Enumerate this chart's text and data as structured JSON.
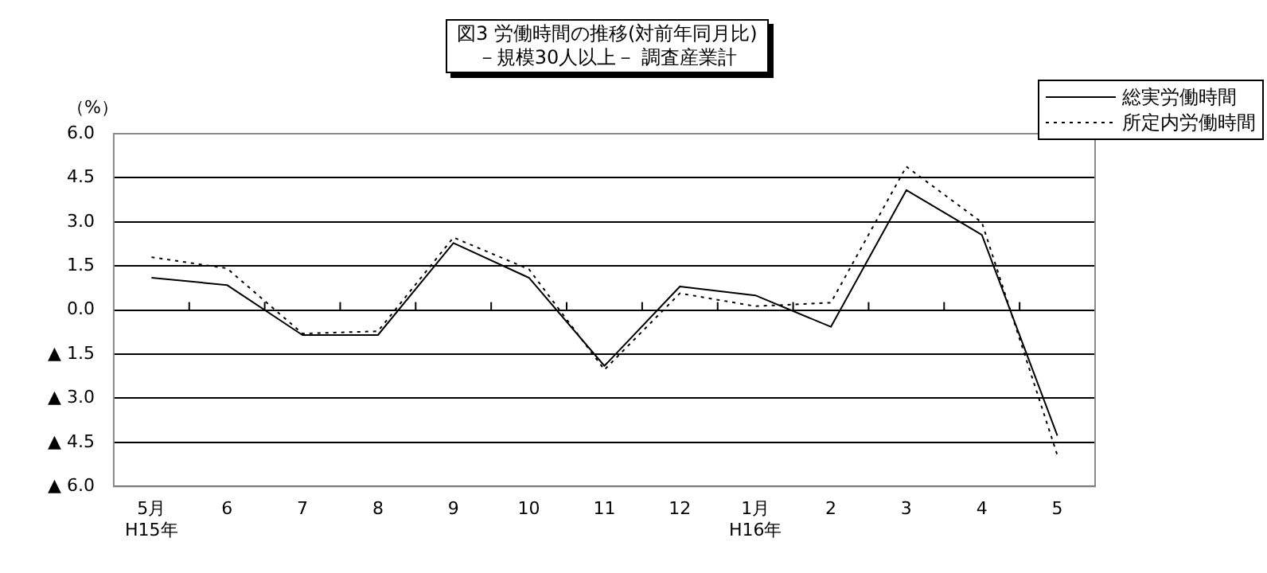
{
  "chart_data": {
    "type": "line",
    "title": "図3  労働時間の推移(対前年同月比)",
    "subtitle": "－規模30人以上－  調査産業計",
    "ylabel": "（%）",
    "categories": [
      "5月\nH15年",
      "6",
      "7",
      "8",
      "9",
      "10",
      "11",
      "12",
      "1月\nH16年",
      "2",
      "3",
      "4",
      "5"
    ],
    "series": [
      {
        "name": "総実労働時間",
        "color": "#000000",
        "line_style": "solid",
        "values": [
          1.1,
          0.85,
          -0.85,
          -0.85,
          2.28,
          1.1,
          -1.9,
          0.8,
          0.5,
          -0.57,
          4.08,
          2.56,
          -4.27
        ]
      },
      {
        "name": "所定内労働時間",
        "color": "#000000",
        "line_style": "dotted",
        "values": [
          1.8,
          1.42,
          -0.8,
          -0.72,
          2.47,
          1.39,
          -2.03,
          0.57,
          0.13,
          0.25,
          4.88,
          2.98,
          -4.94
        ]
      }
    ],
    "ylim": [
      -6,
      6
    ],
    "yticks": [
      {
        "value": 6,
        "label": "6.0"
      },
      {
        "value": 4.5,
        "label": "4.5"
      },
      {
        "value": 3,
        "label": "3.0"
      },
      {
        "value": 1.5,
        "label": "1.5"
      },
      {
        "value": 0,
        "label": "0.0"
      },
      {
        "value": -1.5,
        "label": "▲ 1.5"
      },
      {
        "value": -3,
        "label": "▲ 3.0"
      },
      {
        "value": -4.5,
        "label": "▲ 4.5"
      },
      {
        "value": -6,
        "label": "▲ 6.0"
      }
    ],
    "grid": "y",
    "legend": "top right",
    "marker": "none"
  }
}
